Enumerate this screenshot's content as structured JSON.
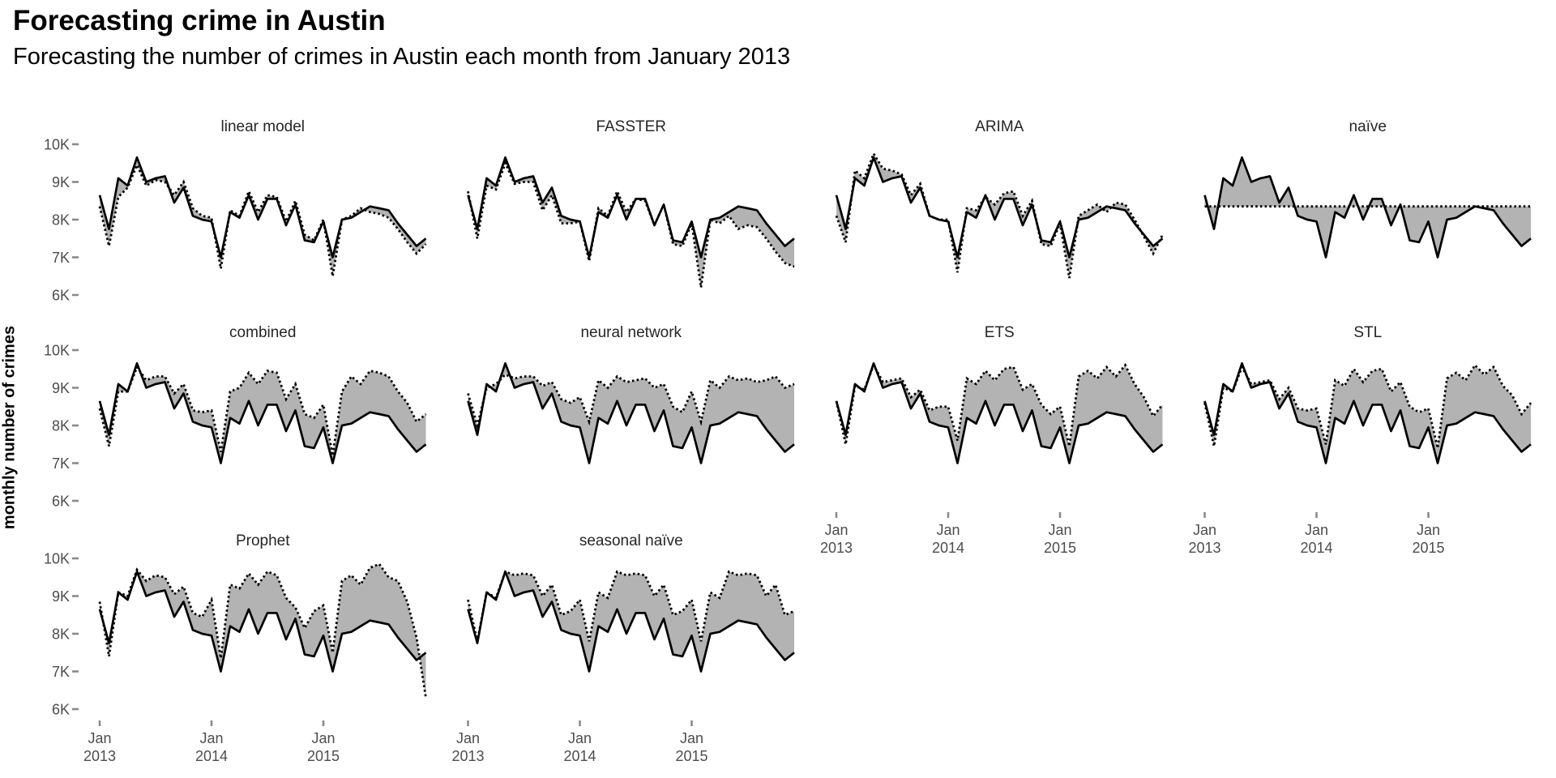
{
  "header": {
    "title": "Forecasting crime in Austin",
    "subtitle": "Forecasting the number of crimes in Austin each month from January 2013"
  },
  "y_axis": {
    "title": "monthly number of crimes",
    "tick_labels": [
      "10K",
      "9K",
      "8K",
      "7K",
      "6K"
    ],
    "tick_values": [
      10,
      9,
      8,
      7,
      6
    ]
  },
  "x_axis": {
    "ticks": [
      {
        "month_index": 0,
        "line1": "Jan",
        "line2": "2013"
      },
      {
        "month_index": 12,
        "line1": "Jan",
        "line2": "2014"
      },
      {
        "month_index": 24,
        "line1": "Jan",
        "line2": "2015"
      }
    ]
  },
  "styles": {
    "line_color": "#000000",
    "fill_color": "#b3b3b3",
    "tick_mark_color": "#8a8a8a",
    "tick_label_color": "#4d4d4d",
    "facet_title_color": "#262626"
  },
  "chart_data": {
    "type": "line",
    "title": "Forecasting crime in Austin",
    "subtitle": "Forecasting the number of crimes in Austin each month from January 2013",
    "ylabel": "monthly number of crimes",
    "unit": "thousands of crimes per month",
    "x_start": "Jan 2013",
    "x_interval": "month",
    "n_points": 36,
    "ylim": [
      5.7,
      10.3
    ],
    "grid": "off",
    "legend": "none",
    "facet_layout": {
      "columns": 4,
      "rows": 3
    },
    "line_styles": {
      "observed": "solid",
      "forecast": "dotted",
      "between": "gray ribbon fill"
    },
    "observed": {
      "name": "observed monthly crimes",
      "values": [
        8.65,
        7.75,
        9.1,
        8.9,
        9.65,
        9.0,
        9.1,
        9.15,
        8.45,
        8.85,
        8.1,
        8.0,
        7.95,
        7.0,
        8.2,
        8.05,
        8.65,
        8.0,
        8.55,
        8.55,
        7.85,
        8.4,
        7.45,
        7.4,
        7.95,
        7.0,
        8.0,
        8.05,
        8.2,
        8.35,
        8.3,
        8.25,
        7.9,
        7.6,
        7.3,
        7.5
      ]
    },
    "facets": [
      {
        "label": "linear model",
        "forecast": [
          8.35,
          7.3,
          8.6,
          8.85,
          9.45,
          8.9,
          9.05,
          9.0,
          8.65,
          9.0,
          8.3,
          8.1,
          8.05,
          6.7,
          8.25,
          8.1,
          8.75,
          8.2,
          8.65,
          8.6,
          7.95,
          8.5,
          7.6,
          7.45,
          8.0,
          6.5,
          8.0,
          8.1,
          8.3,
          8.2,
          8.15,
          8.05,
          7.75,
          7.4,
          7.1,
          7.35
        ]
      },
      {
        "label": "FASSTER",
        "forecast": [
          8.75,
          7.5,
          8.9,
          8.8,
          9.5,
          8.95,
          9.0,
          9.0,
          8.25,
          8.65,
          7.9,
          7.9,
          7.95,
          6.9,
          8.3,
          8.1,
          8.75,
          8.2,
          8.55,
          8.5,
          7.85,
          8.4,
          7.35,
          7.3,
          7.9,
          6.2,
          8.0,
          7.9,
          8.1,
          7.75,
          7.85,
          7.8,
          7.5,
          7.15,
          6.85,
          6.75
        ]
      },
      {
        "label": "ARIMA",
        "forecast": [
          8.1,
          7.4,
          9.3,
          9.1,
          9.75,
          9.35,
          9.3,
          9.2,
          8.65,
          8.95,
          8.1,
          8.0,
          8.0,
          6.6,
          8.3,
          8.25,
          8.6,
          8.4,
          8.7,
          8.75,
          8.1,
          8.5,
          7.35,
          7.3,
          7.9,
          6.45,
          8.1,
          8.25,
          8.4,
          8.2,
          8.45,
          8.4,
          8.0,
          7.55,
          7.1,
          7.6
        ]
      },
      {
        "label": "naïve",
        "forecast": [
          8.35,
          8.35,
          8.35,
          8.35,
          8.35,
          8.35,
          8.35,
          8.35,
          8.35,
          8.35,
          8.35,
          8.35,
          8.35,
          8.35,
          8.35,
          8.35,
          8.35,
          8.35,
          8.35,
          8.35,
          8.35,
          8.35,
          8.35,
          8.35,
          8.35,
          8.35,
          8.35,
          8.35,
          8.35,
          8.35,
          8.35,
          8.35,
          8.35,
          8.35,
          8.35,
          8.35
        ]
      },
      {
        "label": "combined",
        "forecast": [
          8.45,
          7.45,
          8.9,
          8.9,
          9.55,
          9.2,
          9.3,
          9.3,
          8.85,
          9.1,
          8.4,
          8.35,
          8.4,
          7.3,
          8.9,
          9.0,
          9.4,
          9.1,
          9.45,
          9.4,
          8.7,
          9.1,
          8.3,
          8.2,
          8.55,
          7.2,
          8.9,
          9.3,
          9.1,
          9.45,
          9.4,
          9.3,
          8.9,
          8.6,
          8.1,
          8.3
        ]
      },
      {
        "label": "neural network",
        "forecast": [
          8.85,
          8.0,
          9.0,
          9.1,
          9.35,
          9.25,
          9.3,
          9.3,
          9.05,
          9.15,
          8.7,
          8.6,
          8.75,
          8.1,
          9.2,
          9.0,
          9.3,
          9.15,
          9.2,
          9.25,
          9.0,
          9.1,
          8.5,
          8.35,
          8.9,
          8.1,
          9.2,
          9.0,
          9.3,
          9.2,
          9.25,
          9.15,
          9.2,
          9.3,
          9.0,
          9.1
        ]
      },
      {
        "label": "ETS",
        "forecast": [
          8.65,
          7.5,
          9.05,
          8.95,
          9.6,
          9.15,
          9.2,
          9.25,
          8.75,
          8.95,
          8.4,
          8.5,
          8.5,
          7.6,
          9.25,
          9.1,
          9.45,
          9.2,
          9.5,
          9.55,
          8.95,
          9.1,
          8.55,
          8.3,
          8.5,
          7.45,
          9.3,
          9.45,
          9.25,
          9.55,
          9.3,
          9.6,
          9.1,
          8.75,
          8.25,
          8.55
        ]
      },
      {
        "label": "STL",
        "forecast": [
          8.6,
          7.45,
          9.0,
          8.9,
          9.55,
          9.1,
          9.15,
          9.2,
          8.7,
          9.0,
          8.45,
          8.4,
          8.45,
          7.5,
          9.2,
          9.05,
          9.5,
          9.15,
          9.45,
          9.5,
          8.9,
          9.15,
          8.5,
          8.35,
          8.45,
          7.4,
          9.25,
          9.4,
          9.2,
          9.6,
          9.35,
          9.55,
          9.05,
          8.8,
          8.3,
          8.6
        ]
      },
      {
        "label": "Prophet",
        "forecast": [
          8.85,
          7.4,
          9.1,
          9.0,
          9.7,
          9.4,
          9.55,
          9.5,
          9.05,
          9.25,
          8.55,
          8.45,
          8.9,
          7.35,
          9.3,
          9.2,
          9.6,
          9.3,
          9.65,
          9.55,
          8.95,
          8.7,
          8.15,
          8.6,
          8.75,
          7.5,
          9.4,
          9.55,
          9.3,
          9.75,
          9.85,
          9.5,
          9.4,
          8.85,
          7.9,
          6.3
        ]
      },
      {
        "label": "seasonal naïve",
        "forecast": [
          8.9,
          7.8,
          9.1,
          8.95,
          9.65,
          9.55,
          9.6,
          9.55,
          9.0,
          9.3,
          8.5,
          8.6,
          8.9,
          7.8,
          9.1,
          8.95,
          9.65,
          9.55,
          9.6,
          9.55,
          9.0,
          9.3,
          8.5,
          8.6,
          8.9,
          7.8,
          9.1,
          8.95,
          9.65,
          9.55,
          9.6,
          9.55,
          9.0,
          9.3,
          8.5,
          8.6
        ]
      }
    ]
  }
}
